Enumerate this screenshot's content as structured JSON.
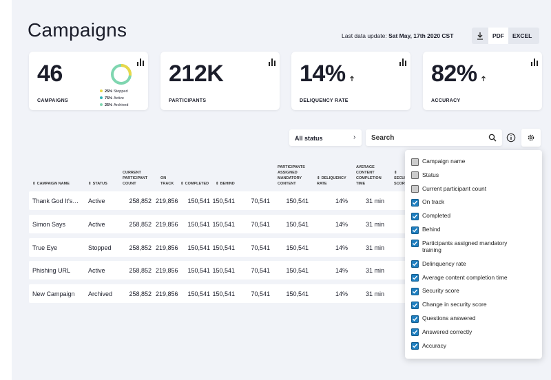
{
  "header": {
    "title": "Campaigns",
    "update_label": "Last data update:",
    "update_value": "Sat May, 17th 2020 CST",
    "buttons": [
      "PDF",
      "EXCEL"
    ]
  },
  "kpis": [
    {
      "value": "46",
      "label": "CAMPAIGNS",
      "legend": [
        {
          "pct": "25%",
          "text": "Stopped"
        },
        {
          "pct": "75%",
          "text": "Active"
        },
        {
          "pct": "25%",
          "text": "Archived"
        }
      ]
    },
    {
      "value": "212K",
      "label": "PARTICIPANTS"
    },
    {
      "value": "14%",
      "label": "DELIQUENCY RATE",
      "trend": "up"
    },
    {
      "value": "82%",
      "label": "ACCURACY",
      "trend": "up"
    }
  ],
  "filters": {
    "status": "All status",
    "search": "Search"
  },
  "table": {
    "headers": [
      "CAMPAIGN NAME",
      "STATUS",
      "CURRENT PARTICIPANT COUNT",
      "ON TRACK",
      "COMPLETED",
      "BEHIND",
      "PARTICIPANTS ASSIGNED MANDATORY CONTENT",
      "DELIQUENCY RATE",
      "AVERAGE CONTENT COMPLETION TIME",
      "SECURITY SCORE"
    ],
    "rows": [
      [
        "Thank God It's…",
        "Active",
        "258,852",
        "219,856",
        "150,541",
        "150,541",
        "70,541",
        "150,541",
        "14%",
        "31 min"
      ],
      [
        "Simon Says",
        "Active",
        "258,852",
        "219,856",
        "150,541",
        "150,541",
        "70,541",
        "150,541",
        "14%",
        "31 min"
      ],
      [
        "True Eye",
        "Stopped",
        "258,852",
        "219,856",
        "150,541",
        "150,541",
        "70,541",
        "150,541",
        "14%",
        "31 min"
      ],
      [
        "Phishing URL",
        "Active",
        "258,852",
        "219,856",
        "150,541",
        "150,541",
        "70,541",
        "150,541",
        "14%",
        "31 min"
      ],
      [
        "New Campaign",
        "Archived",
        "258,852",
        "219,856",
        "150,541",
        "150,541",
        "70,541",
        "150,541",
        "14%",
        "31 min"
      ]
    ]
  },
  "column_menu": [
    {
      "label": "Campaign name",
      "checked": false
    },
    {
      "label": "Status",
      "checked": false
    },
    {
      "label": "Current participant count",
      "checked": false
    },
    {
      "label": "On track",
      "checked": true
    },
    {
      "label": "Completed",
      "checked": true
    },
    {
      "label": "Behind",
      "checked": true
    },
    {
      "label": "Participants assigned mandatory training",
      "checked": true
    },
    {
      "label": "Delinquency rate",
      "checked": true
    },
    {
      "label": "Average content completion time",
      "checked": true
    },
    {
      "label": "Security score",
      "checked": true
    },
    {
      "label": "Change in security score",
      "checked": true
    },
    {
      "label": "Questions answered",
      "checked": true
    },
    {
      "label": "Answered correctly",
      "checked": true
    },
    {
      "label": "Accuracy",
      "checked": true
    }
  ]
}
